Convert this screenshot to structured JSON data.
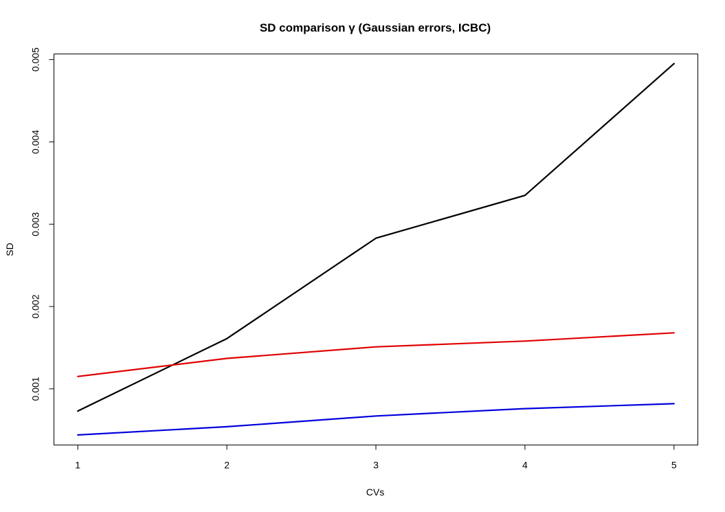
{
  "chart_data": {
    "type": "line",
    "title": "SD comparison γ (Gaussian errors, ICBC)",
    "xlabel": "CVs",
    "ylabel": "SD",
    "x": [
      1,
      2,
      3,
      4,
      5
    ],
    "x_ticks": [
      1,
      2,
      3,
      4,
      5
    ],
    "x_tick_labels": [
      "1",
      "2",
      "3",
      "4",
      "5"
    ],
    "y_ticks": [
      0.001,
      0.002,
      0.003,
      0.004,
      0.005
    ],
    "y_tick_labels": [
      "0.001",
      "0.002",
      "0.003",
      "0.004",
      "0.005"
    ],
    "xlim": [
      0.84,
      5.16
    ],
    "ylim": [
      0.000318,
      0.005068
    ],
    "grid": false,
    "legend": "none",
    "series": [
      {
        "color": "#000000",
        "values": [
          0.00073,
          0.00161,
          0.00283,
          0.00335,
          0.00495
        ]
      },
      {
        "color": "#e00000",
        "values": [
          0.00115,
          0.00137,
          0.00151,
          0.00158,
          0.00168
        ]
      },
      {
        "color": "#0000dd",
        "values": [
          0.00044,
          0.00054,
          0.00067,
          0.00076,
          0.00082
        ]
      }
    ]
  }
}
